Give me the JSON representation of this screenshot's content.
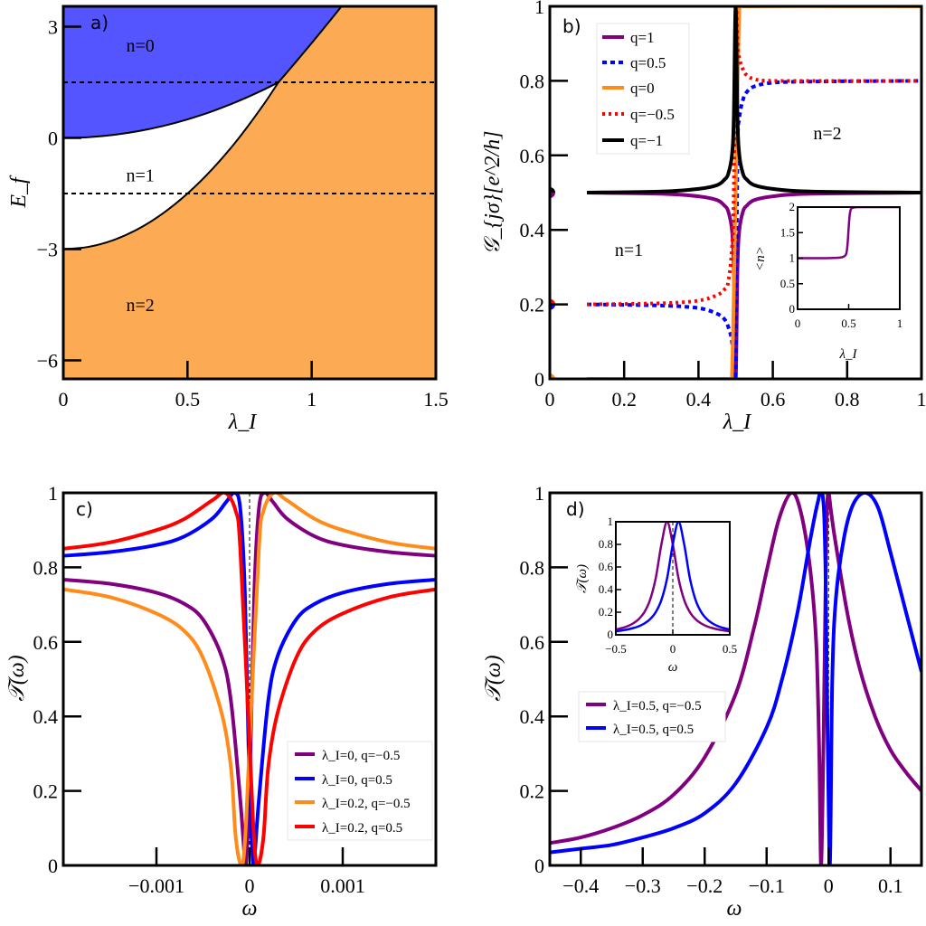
{
  "chart_data": [
    {
      "panel_label": "a)",
      "type": "area",
      "xlabel": "λ_I",
      "ylabel": "E_f",
      "xlim": [
        0,
        1.5
      ],
      "ylim": [
        -6.5,
        3.55
      ],
      "xticks": [
        0,
        0.5,
        1,
        1.5
      ],
      "xtick_labels": [
        "0",
        "0.5",
        "1",
        "1.5"
      ],
      "yticks": [
        3,
        0,
        -3,
        -6
      ],
      "ytick_labels": [
        "3",
        "0",
        "−3",
        "−6"
      ],
      "regions": [
        {
          "label": "n=0",
          "color": "#5555ff"
        },
        {
          "label": "n=1",
          "color": "#ffffff"
        },
        {
          "label": "n=2",
          "color": "#fdaa55"
        }
      ],
      "boundary_n0_n1": {
        "x": [
          0,
          0.1,
          0.2,
          0.3,
          0.4,
          0.5,
          0.6,
          0.7,
          0.8,
          0.866
        ],
        "y": [
          0,
          0.02,
          0.08,
          0.18,
          0.32,
          0.5,
          0.72,
          0.98,
          1.28,
          1.5
        ]
      },
      "boundary_n1_n2": {
        "x": [
          0,
          0.1,
          0.2,
          0.3,
          0.4,
          0.5,
          0.6,
          0.7,
          0.8,
          0.866
        ],
        "y": [
          -3,
          -2.94,
          -2.76,
          -2.46,
          -2.04,
          -1.5,
          -0.84,
          -0.06,
          0.84,
          1.5
        ]
      },
      "boundary_n0_n2": {
        "x": [
          0.866,
          0.93,
          1.0,
          1.06,
          1.12
        ],
        "y": [
          1.5,
          2.0,
          2.56,
          3.05,
          3.55
        ]
      },
      "dashed_lines_y": [
        1.5,
        -1.5
      ]
    },
    {
      "panel_label": "b)",
      "type": "line",
      "xlabel": "λ_I",
      "ylabel": "𝒢_{jσ}[e^2/h]",
      "xlim": [
        0,
        1
      ],
      "ylim": [
        0,
        1
      ],
      "xticks": [
        0,
        0.2,
        0.4,
        0.6,
        0.8,
        1
      ],
      "xtick_labels": [
        "0",
        "0.2",
        "0.4",
        "0.6",
        "0.8",
        "1"
      ],
      "yticks": [
        0,
        0.2,
        0.4,
        0.6,
        0.8,
        1
      ],
      "ytick_labels": [
        "0",
        "0.2",
        "0.4",
        "0.6",
        "0.8",
        "1"
      ],
      "region_labels": [
        "n=1",
        "n=2"
      ],
      "legend_placement": "top-left",
      "series": [
        {
          "name": "q=1",
          "color": "#800080",
          "style": "solid",
          "x": [
            0.1,
            0.3,
            0.4,
            0.45,
            0.47,
            0.48,
            0.49,
            0.495,
            0.5,
            0.505,
            0.51,
            0.52,
            0.53,
            0.55,
            0.6,
            0.7,
            1
          ],
          "y": [
            0.5,
            0.497,
            0.49,
            0.48,
            0.465,
            0.45,
            0.4,
            0.3,
            0.0,
            0.3,
            0.4,
            0.45,
            0.465,
            0.48,
            0.49,
            0.497,
            0.5
          ]
        },
        {
          "name": "q=0.5",
          "color": "#0000ff",
          "style": "dashdot",
          "x": [
            0.1,
            0.3,
            0.4,
            0.45,
            0.47,
            0.48,
            0.49,
            0.5,
            0.5,
            0.505,
            0.51,
            0.52,
            0.53,
            0.55,
            0.6,
            0.7,
            1
          ],
          "y": [
            0.2,
            0.197,
            0.19,
            0.175,
            0.16,
            0.14,
            0.1,
            0.0,
            0.0,
            0.6,
            0.7,
            0.75,
            0.77,
            0.785,
            0.795,
            0.798,
            0.8
          ]
        },
        {
          "name": "q=0",
          "color": "#ff8c1a",
          "style": "solid",
          "x": [
            0.1,
            0.48,
            0.49,
            0.5,
            0.51,
            0.52,
            1
          ],
          "y": [
            0,
            0,
            0.01,
            0.5,
            0.99,
            1,
            1
          ]
        },
        {
          "name": "q=−0.5",
          "color": "#ff0000",
          "style": "dotted",
          "x": [
            0.1,
            0.3,
            0.4,
            0.45,
            0.47,
            0.48,
            0.49,
            0.495,
            0.5,
            0.505,
            0.51,
            0.52,
            0.53,
            0.55,
            0.6,
            1
          ],
          "y": [
            0.2,
            0.203,
            0.21,
            0.225,
            0.24,
            0.26,
            0.35,
            0.5,
            1.0,
            0.9,
            0.86,
            0.83,
            0.815,
            0.805,
            0.8,
            0.8
          ]
        },
        {
          "name": "q=−1",
          "color": "#000000",
          "style": "solid",
          "x": [
            0.1,
            0.3,
            0.4,
            0.45,
            0.47,
            0.48,
            0.49,
            0.495,
            0.5,
            0.505,
            0.51,
            0.52,
            0.53,
            0.55,
            0.6,
            0.7,
            1
          ],
          "y": [
            0.5,
            0.503,
            0.51,
            0.52,
            0.535,
            0.55,
            0.6,
            0.7,
            1.0,
            0.7,
            0.6,
            0.55,
            0.535,
            0.52,
            0.51,
            0.503,
            0.5
          ]
        }
      ],
      "markers_at_x0": [
        {
          "y": 0.5,
          "colors": [
            "#000000",
            "#800080"
          ]
        },
        {
          "y": 0.2,
          "colors": [
            "#ff0000",
            "#0000ff"
          ]
        },
        {
          "y": 0.0,
          "colors": [
            "#ff8c1a",
            "#ff8c1a"
          ]
        }
      ],
      "inset": {
        "type": "line",
        "xlabel": "λ_I",
        "ylabel": "<n>",
        "xlim": [
          0,
          1
        ],
        "ylim": [
          0,
          2
        ],
        "xticks": [
          0,
          0.5,
          1
        ],
        "xtick_labels": [
          "0",
          "0.5",
          "1"
        ],
        "yticks": [
          0,
          0.5,
          1,
          1.5,
          2
        ],
        "ytick_labels": [
          "0",
          "0.5",
          "1",
          "1.5",
          "2"
        ],
        "series": [
          {
            "color": "#800080",
            "x": [
              0,
              0.2,
              0.4,
              0.45,
              0.47,
              0.48,
              0.49,
              0.5,
              0.51,
              0.52,
              0.53,
              0.55,
              0.6,
              1
            ],
            "y": [
              1,
              1,
              1.01,
              1.03,
              1.06,
              1.12,
              1.3,
              1.6,
              1.85,
              1.95,
              1.98,
              1.99,
              2,
              2
            ]
          }
        ]
      }
    },
    {
      "panel_label": "c)",
      "type": "line",
      "xlabel": "ω",
      "ylabel": "𝒯(ω)",
      "xlim": [
        -0.002,
        0.002
      ],
      "ylim": [
        0,
        1
      ],
      "xticks": [
        -0.001,
        0,
        0.001
      ],
      "xtick_labels": [
        "−0.001",
        "0",
        "0.001"
      ],
      "yticks": [
        0,
        0.2,
        0.4,
        0.6,
        0.8,
        1
      ],
      "ytick_labels": [
        "0",
        "0.2",
        "0.4",
        "0.6",
        "0.8",
        "1"
      ],
      "dashed_line_x": 0,
      "legend_placement": "bottom-right",
      "series": [
        {
          "name": "λ_I=0, q=−0.5",
          "color": "#800080",
          "x": [
            -0.002,
            -0.0015,
            -0.001,
            -0.0007,
            -0.0005,
            -0.0003,
            -0.0002,
            -0.0001,
            -5e-05,
            -4e-05,
            0,
            5e-05,
            0.0001,
            0.00016,
            0.00025,
            0.0004,
            0.0007,
            0.001,
            0.0015,
            0.002
          ],
          "y": [
            0.767,
            0.756,
            0.732,
            0.702,
            0.66,
            0.561,
            0.441,
            0.176,
            0.009,
            0,
            0.2,
            0.728,
            0.957,
            1,
            0.976,
            0.931,
            0.883,
            0.86,
            0.841,
            0.831
          ]
        },
        {
          "name": "λ_I=0, q=0.5",
          "color": "#0000ff",
          "x": [
            -0.002,
            -0.0015,
            -0.001,
            -0.0007,
            -0.0004,
            -0.00025,
            -0.00016,
            -0.0001,
            -5e-05,
            0,
            4e-05,
            5e-05,
            0.0001,
            0.0002,
            0.0003,
            0.0005,
            0.0007,
            0.001,
            0.0015,
            0.002
          ],
          "y": [
            0.831,
            0.841,
            0.86,
            0.883,
            0.931,
            0.976,
            1,
            0.957,
            0.728,
            0.2,
            0,
            0.009,
            0.176,
            0.441,
            0.561,
            0.66,
            0.702,
            0.732,
            0.756,
            0.767
          ]
        },
        {
          "name": "λ_I=0.2, q=−0.5",
          "color": "#ff8c1a",
          "x": [
            -0.002,
            -0.0015,
            -0.001,
            -0.0007,
            -0.0005,
            -0.0003,
            -0.0002,
            -0.00015,
            -9e-05,
            -5e-05,
            0,
            0.0001,
            0.00015,
            0.00026,
            0.0004,
            0.0007,
            0.001,
            0.0015,
            0.002
          ],
          "y": [
            0.741,
            0.72,
            0.676,
            0.629,
            0.557,
            0.409,
            0.263,
            0.079,
            0,
            0.063,
            0.324,
            0.85,
            0.952,
            1,
            0.98,
            0.93,
            0.9,
            0.867,
            0.85
          ]
        },
        {
          "name": "λ_I=0.2, q=0.5",
          "color": "#ff0000",
          "x": [
            -0.002,
            -0.0015,
            -0.001,
            -0.0007,
            -0.0004,
            -0.00026,
            -0.00015,
            -0.0001,
            0,
            5e-05,
            9e-05,
            0.00015,
            0.0002,
            0.0003,
            0.0005,
            0.0007,
            0.001,
            0.0015,
            0.002
          ],
          "y": [
            0.85,
            0.867,
            0.9,
            0.93,
            0.98,
            1,
            0.952,
            0.85,
            0.324,
            0.063,
            0,
            0.079,
            0.263,
            0.409,
            0.557,
            0.629,
            0.676,
            0.72,
            0.741
          ]
        }
      ]
    },
    {
      "panel_label": "d)",
      "type": "line",
      "xlabel": "ω",
      "ylabel": "𝒯(ω)",
      "xlim": [
        -0.45,
        0.15
      ],
      "ylim": [
        0,
        1
      ],
      "xticks": [
        -0.4,
        -0.3,
        -0.2,
        -0.1,
        0,
        0.1
      ],
      "xtick_labels": [
        "−0.4",
        "−0.3",
        "−0.2",
        "−0.1",
        "0",
        "0.1"
      ],
      "yticks": [
        0,
        0.2,
        0.4,
        0.6,
        0.8,
        1
      ],
      "ytick_labels": [
        "0",
        "0.2",
        "0.4",
        "0.6",
        "0.8",
        "1"
      ],
      "dashed_line_x": 0,
      "legend_placement": "center-left",
      "series": [
        {
          "name": "λ_I=0.5, q=−0.5",
          "color": "#800080",
          "x": [
            -0.45,
            -0.4,
            -0.35,
            -0.3,
            -0.25,
            -0.2,
            -0.15,
            -0.12,
            -0.1,
            -0.08,
            -0.06,
            -0.045,
            -0.03,
            -0.02,
            -0.015,
            -0.012,
            -0.008,
            -0.004,
            -0.001,
            0.004,
            0.01,
            0.03,
            0.05,
            0.075,
            0.1,
            0.125,
            0.15
          ],
          "y": [
            0.06,
            0.075,
            0.1,
            0.135,
            0.19,
            0.29,
            0.46,
            0.64,
            0.79,
            0.93,
            1.0,
            0.95,
            0.8,
            0.6,
            0.3,
            0.0,
            0.35,
            0.85,
            1.0,
            0.95,
            0.88,
            0.68,
            0.53,
            0.4,
            0.31,
            0.25,
            0.2
          ]
        },
        {
          "name": "λ_I=0.5, q=0.5",
          "color": "#0000ff",
          "x": [
            -0.45,
            -0.4,
            -0.35,
            -0.3,
            -0.25,
            -0.2,
            -0.15,
            -0.1,
            -0.075,
            -0.05,
            -0.03,
            -0.018,
            -0.01,
            -0.005,
            0.0015,
            0.006,
            0.012,
            0.025,
            0.04,
            0.06,
            0.08,
            0.1,
            0.125,
            0.15
          ],
          "y": [
            0.035,
            0.045,
            0.055,
            0.075,
            0.1,
            0.14,
            0.22,
            0.37,
            0.5,
            0.68,
            0.87,
            0.97,
            1.0,
            0.8,
            0.0,
            0.5,
            0.72,
            0.88,
            0.97,
            1.0,
            0.96,
            0.84,
            0.68,
            0.52
          ]
        }
      ],
      "inset": {
        "type": "line",
        "xlabel": "ω",
        "ylabel": "𝒯(ω)",
        "xlim": [
          -0.5,
          0.5
        ],
        "ylim": [
          0,
          1
        ],
        "xticks": [
          -0.5,
          0,
          0.5
        ],
        "xtick_labels": [
          "−0.5",
          "0",
          "0.5"
        ],
        "yticks": [
          0,
          0.2,
          0.4,
          0.6,
          0.8,
          1
        ],
        "ytick_labels": [
          "0",
          "0.2",
          "0.4",
          "0.6",
          "0.8",
          "1"
        ],
        "dashed_line_x": 0,
        "series": [
          {
            "color": "#800080",
            "x": [
              -0.5,
              -0.45,
              -0.4,
              -0.35,
              -0.3,
              -0.25,
              -0.2,
              -0.15,
              -0.1,
              -0.05,
              0,
              0.05,
              0.1,
              0.15,
              0.2,
              0.25,
              0.3,
              0.35,
              0.4,
              0.45,
              0.5
            ],
            "y": [
              0.047,
              0.059,
              0.075,
              0.1,
              0.138,
              0.2,
              0.308,
              0.5,
              0.8,
              1,
              0.8,
              0.5,
              0.308,
              0.2,
              0.138,
              0.1,
              0.075,
              0.059,
              0.047,
              0.038,
              0.031
            ]
          },
          {
            "color": "#0000ff",
            "x": [
              -0.5,
              -0.45,
              -0.4,
              -0.35,
              -0.3,
              -0.25,
              -0.2,
              -0.15,
              -0.1,
              -0.05,
              0,
              0.05,
              0.1,
              0.15,
              0.2,
              0.25,
              0.3,
              0.35,
              0.4,
              0.45,
              0.5
            ],
            "y": [
              0.031,
              0.038,
              0.047,
              0.059,
              0.075,
              0.1,
              0.138,
              0.2,
              0.308,
              0.5,
              0.8,
              1,
              0.8,
              0.5,
              0.308,
              0.2,
              0.138,
              0.1,
              0.075,
              0.059,
              0.047
            ]
          }
        ]
      }
    }
  ]
}
